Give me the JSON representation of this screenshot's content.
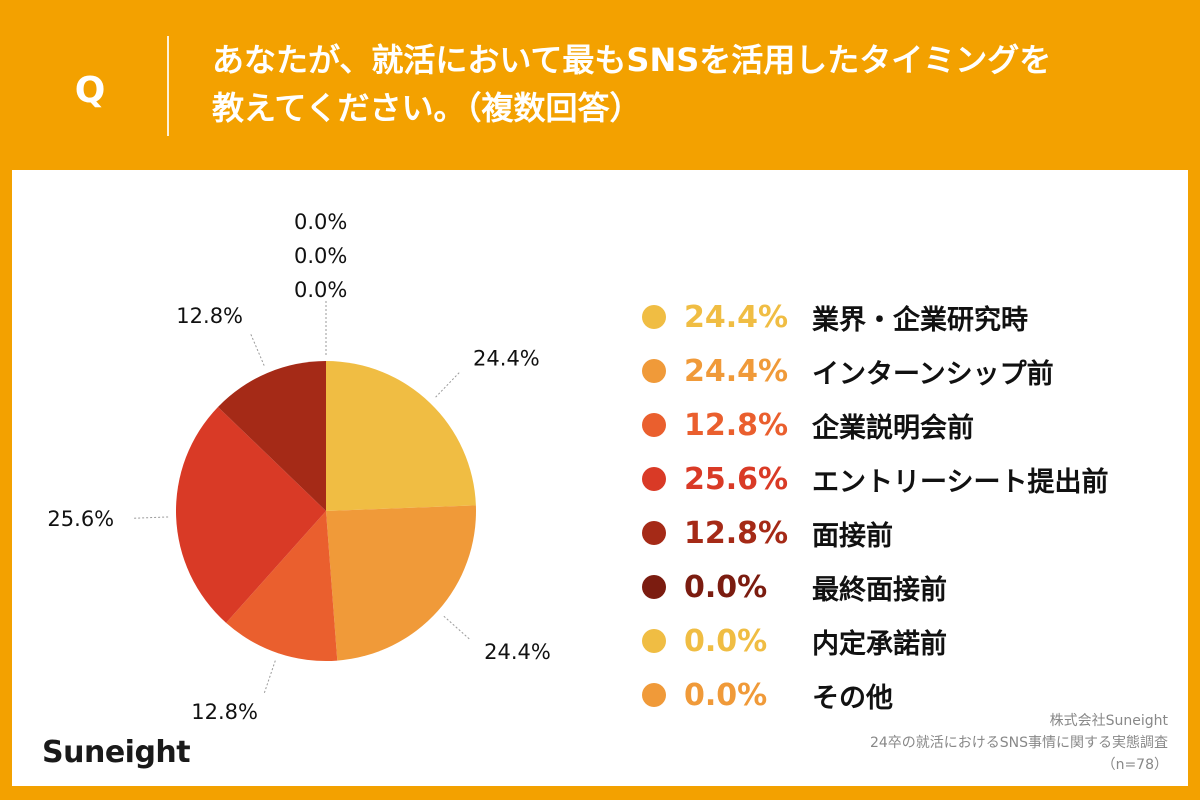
{
  "header": {
    "q_letter": "Q",
    "question_line1": "あなたが、就活において最もSNSを活用したタイミングを",
    "question_line2": "教えてください。（複数回答）"
  },
  "brand": "Suneight",
  "source": {
    "company": "株式会社Suneight",
    "survey": "24卒の就活におけるSNS事情に関する実態調査",
    "sample": "（n=78）"
  },
  "chart_data": {
    "type": "pie",
    "slices": [
      {
        "label": "業界・企業研究時",
        "value": 24.4,
        "value_text": "24.4%",
        "color": "#f0bd43"
      },
      {
        "label": "インターンシップ前",
        "value": 24.4,
        "value_text": "24.4%",
        "color": "#f09a39"
      },
      {
        "label": "企業説明会前",
        "value": 12.8,
        "value_text": "12.8%",
        "color": "#ea5f2e"
      },
      {
        "label": "エントリーシート提出前",
        "value": 25.6,
        "value_text": "25.6%",
        "color": "#d93a26"
      },
      {
        "label": "面接前",
        "value": 12.8,
        "value_text": "12.8%",
        "color": "#a52a17"
      },
      {
        "label": "最終面接前",
        "value": 0.0,
        "value_text": "0.0%",
        "color": "#7b1c10"
      },
      {
        "label": "内定承諾前",
        "value": 0.0,
        "value_text": "0.0%",
        "color": "#f0bd43"
      },
      {
        "label": "その他",
        "value": 0.0,
        "value_text": "0.0%",
        "color": "#f09a39"
      }
    ]
  }
}
